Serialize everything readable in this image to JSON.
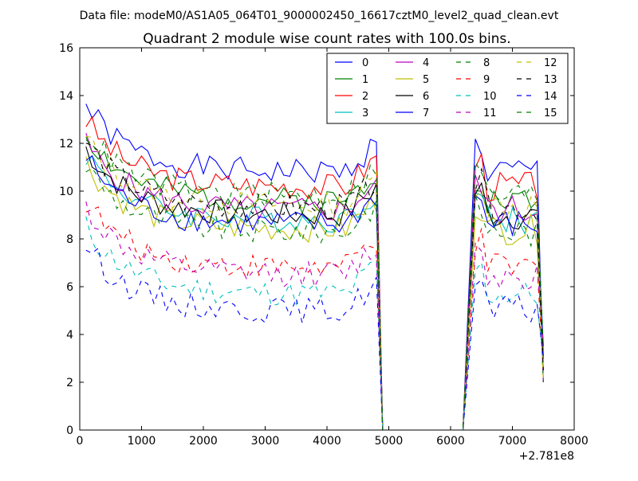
{
  "header": {
    "data_file": "Data file: modeM0/AS1A05_064T01_9000002450_16617cztM0_level2_quad_clean.evt",
    "title": "Quadrant 2 module wise count rates with 100.0s bins."
  },
  "chart_data": {
    "type": "line",
    "title": "Quadrant 2 module wise count rates with 100.0s bins.",
    "xlabel": "",
    "ylabel": "",
    "x_offset_label": "+2.781e8",
    "xlim": [
      0,
      8000
    ],
    "ylim": [
      0,
      16
    ],
    "x_ticks": [
      0,
      1000,
      2000,
      3000,
      4000,
      5000,
      6000,
      7000,
      8000
    ],
    "y_ticks": [
      0,
      2,
      4,
      6,
      8,
      10,
      12,
      14,
      16
    ],
    "grid": false,
    "legend": "top-right, 4 columns",
    "series": [
      {
        "name": "0",
        "color": "#0000ff",
        "dash": "solid",
        "level": 10.8
      },
      {
        "name": "1",
        "color": "#008000",
        "dash": "solid",
        "level": 9.6
      },
      {
        "name": "2",
        "color": "#ff0000",
        "dash": "solid",
        "level": 10.2
      },
      {
        "name": "3",
        "color": "#00bfbf",
        "dash": "solid",
        "level": 8.8
      },
      {
        "name": "4",
        "color": "#bf00bf",
        "dash": "solid",
        "level": 9.2
      },
      {
        "name": "5",
        "color": "#bfbf00",
        "dash": "solid",
        "level": 8.4
      },
      {
        "name": "6",
        "color": "#000000",
        "dash": "solid",
        "level": 9.0
      },
      {
        "name": "7",
        "color": "#0000ff",
        "dash": "solid",
        "level": 8.6
      },
      {
        "name": "8",
        "color": "#008000",
        "dash": "dashed",
        "level": 8.3
      },
      {
        "name": "9",
        "color": "#ff0000",
        "dash": "dashed",
        "level": 6.8
      },
      {
        "name": "10",
        "color": "#00bfbf",
        "dash": "dashed",
        "level": 5.7
      },
      {
        "name": "11",
        "color": "#bf00bf",
        "dash": "dashed",
        "level": 6.5
      },
      {
        "name": "12",
        "color": "#bfbf00",
        "dash": "dashed",
        "level": 9.4
      },
      {
        "name": "13",
        "color": "#000000",
        "dash": "dashed",
        "level": 9.3
      },
      {
        "name": "14",
        "color": "#0000ff",
        "dash": "dashed",
        "level": 5.0
      },
      {
        "name": "15",
        "color": "#008000",
        "dash": "dashed",
        "level": 9.8
      }
    ],
    "time_profile": {
      "segment1_start": 100,
      "segment1_end": 4800,
      "drop_end": 4900,
      "gap_end": 6200,
      "segment2_peak": 6400,
      "segment2_end": 7400,
      "final_point": 7500,
      "bin": 100,
      "initial_excess": 2.8
    }
  }
}
